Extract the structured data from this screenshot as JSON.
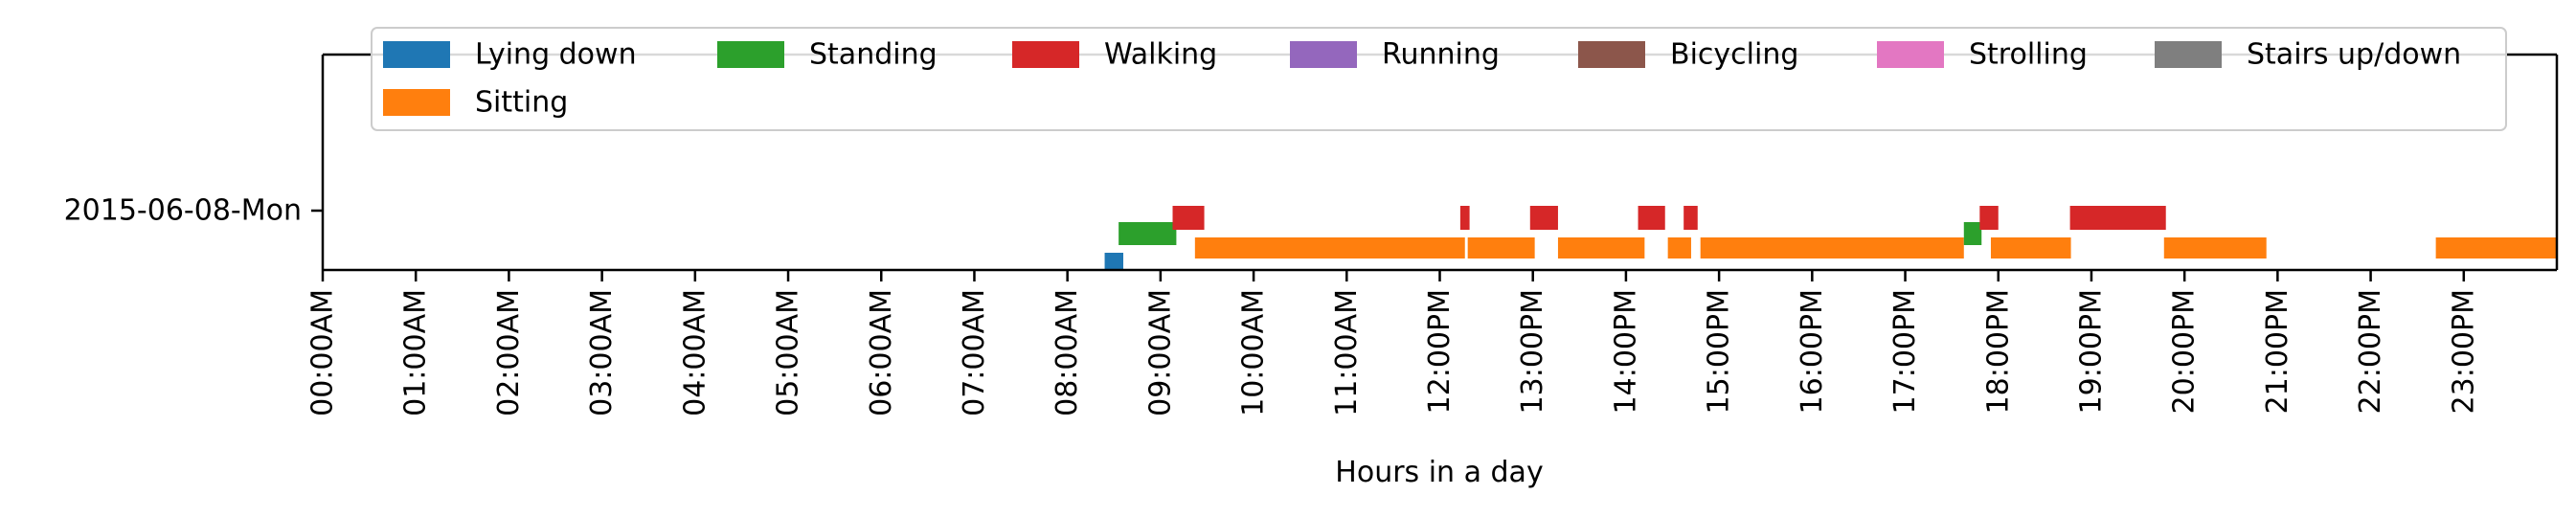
{
  "chart_data": {
    "type": "timeline",
    "xlabel": "Hours in a day",
    "xlim": [
      0,
      24
    ],
    "x_ticks": [
      "00:00AM",
      "01:00AM",
      "02:00AM",
      "03:00AM",
      "04:00AM",
      "05:00AM",
      "06:00AM",
      "07:00AM",
      "08:00AM",
      "09:00AM",
      "10:00AM",
      "11:00AM",
      "12:00PM",
      "13:00PM",
      "14:00PM",
      "15:00PM",
      "16:00PM",
      "17:00PM",
      "18:00PM",
      "19:00PM",
      "20:00PM",
      "21:00PM",
      "22:00PM",
      "23:00PM"
    ],
    "y_categories": [
      "2015-06-08-Mon"
    ],
    "legend_position": "top",
    "series": [
      {
        "name": "Lying down",
        "color": "#1f77b4",
        "segments": [
          [
            8.4,
            8.6
          ]
        ]
      },
      {
        "name": "Sitting",
        "color": "#ff7f0e",
        "segments": [
          [
            9.37,
            12.27
          ],
          [
            12.3,
            13.02
          ],
          [
            13.27,
            14.2
          ],
          [
            14.45,
            14.7
          ],
          [
            14.8,
            17.63
          ],
          [
            17.92,
            18.78
          ],
          [
            19.78,
            20.88
          ],
          [
            22.7,
            24.0
          ]
        ]
      },
      {
        "name": "Standing",
        "color": "#2ca02c",
        "segments": [
          [
            8.55,
            9.17
          ],
          [
            17.63,
            17.82
          ]
        ]
      },
      {
        "name": "Walking",
        "color": "#d62728",
        "segments": [
          [
            9.13,
            9.47
          ],
          [
            12.22,
            12.32
          ],
          [
            12.97,
            13.27
          ],
          [
            14.13,
            14.42
          ],
          [
            14.62,
            14.77
          ],
          [
            17.8,
            18.0
          ],
          [
            18.77,
            19.8
          ]
        ]
      },
      {
        "name": "Running",
        "color": "#9467bd",
        "segments": []
      },
      {
        "name": "Bicycling",
        "color": "#8c564b",
        "segments": []
      },
      {
        "name": "Strolling",
        "color": "#e377c2",
        "segments": []
      },
      {
        "name": "Stairs up/down",
        "color": "#7f7f7f",
        "segments": []
      }
    ]
  }
}
